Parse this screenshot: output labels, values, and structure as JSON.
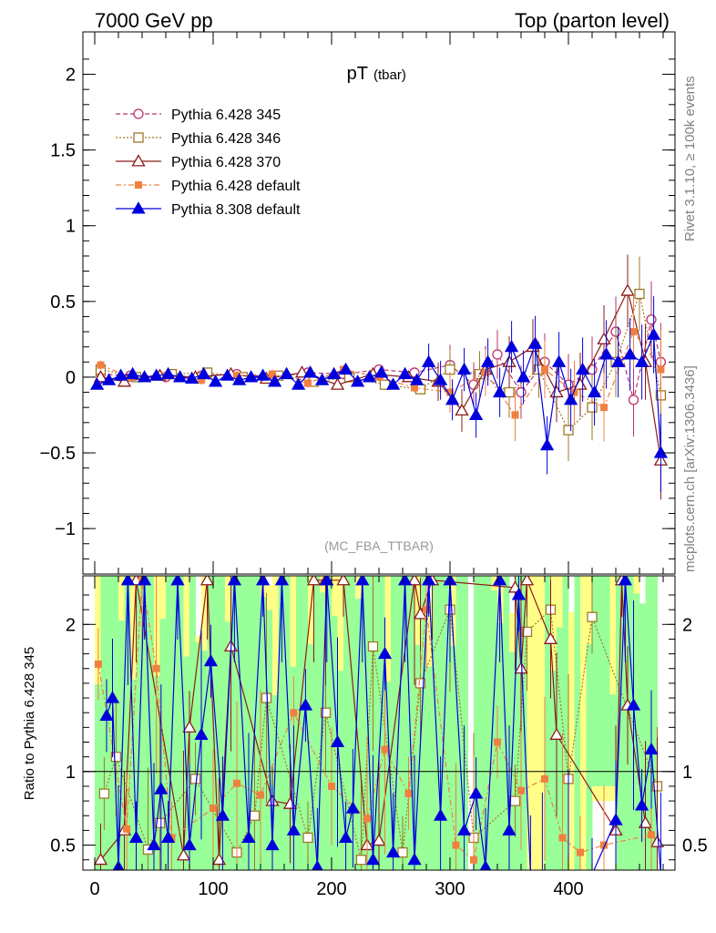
{
  "header": {
    "left": "7000 GeV pp",
    "right": "Top (parton level)"
  },
  "side_labels": {
    "rivet": "Rivet 3.1.10, ≥ 100k events",
    "mcplots": "mcplots.cern.ch [arXiv:1306.3436]"
  },
  "chart_data": [
    {
      "type": "line",
      "panel": "main",
      "title": "pT",
      "title_sub": "(tbar)",
      "watermark": "(MC_FBA_TTBAR)",
      "xlim": [
        -10,
        490
      ],
      "ylim": [
        -1.3,
        2.28
      ],
      "yticks": [
        -1,
        -0.5,
        0,
        0.5,
        1,
        1.5,
        2
      ],
      "ytick_labels": [
        "−1",
        "−0.5",
        "0",
        "0.5",
        "1",
        "1.5",
        "2"
      ],
      "legend_position": "top-left",
      "series": [
        {
          "name": "Pythia 6.428 345",
          "color": "#b8336a",
          "marker": "open-circle",
          "x": [
            5,
            30,
            60,
            90,
            120,
            150,
            180,
            210,
            240,
            270,
            300,
            320,
            340,
            360,
            380,
            400,
            420,
            440,
            455,
            470,
            478
          ],
          "y": [
            0.02,
            0.01,
            0.0,
            0.01,
            0.02,
            0.0,
            0.03,
            0.02,
            0.05,
            0.03,
            0.08,
            -0.05,
            0.15,
            -0.1,
            0.1,
            -0.05,
            0.05,
            0.3,
            -0.15,
            0.38,
            0.1
          ]
        },
        {
          "name": "Pythia 6.428 346",
          "color": "#a07828",
          "marker": "open-square",
          "x": [
            5,
            35,
            65,
            95,
            125,
            155,
            185,
            215,
            245,
            275,
            300,
            325,
            350,
            375,
            400,
            420,
            440,
            460,
            478
          ],
          "y": [
            0.05,
            0.0,
            0.02,
            0.03,
            0.0,
            0.01,
            -0.03,
            0.0,
            -0.05,
            -0.08,
            0.05,
            0.02,
            -0.1,
            0.05,
            -0.35,
            -0.2,
            0.1,
            0.55,
            -0.12
          ]
        },
        {
          "name": "Pythia 6.428 370",
          "color": "#8b1a1a",
          "marker": "open-triangle",
          "x": [
            5,
            25,
            55,
            85,
            115,
            145,
            175,
            205,
            235,
            265,
            290,
            310,
            330,
            350,
            370,
            390,
            410,
            430,
            450,
            465,
            478
          ],
          "y": [
            0.0,
            -0.03,
            0.01,
            0.0,
            0.02,
            -0.01,
            0.03,
            -0.05,
            0.02,
            0.0,
            -0.03,
            -0.22,
            0.05,
            0.1,
            0.2,
            -0.1,
            -0.05,
            0.25,
            0.57,
            0.1,
            -0.55
          ]
        },
        {
          "name": "Pythia 6.428 default",
          "color": "#f08040",
          "marker": "filled-square",
          "x": [
            5,
            30,
            60,
            90,
            120,
            150,
            180,
            210,
            240,
            270,
            300,
            330,
            355,
            380,
            405,
            430,
            455,
            478
          ],
          "y": [
            0.08,
            0.0,
            0.01,
            -0.02,
            0.01,
            0.02,
            -0.04,
            0.05,
            0.0,
            -0.07,
            -0.1,
            0.03,
            -0.25,
            0.05,
            -0.1,
            -0.2,
            0.3,
            0.05
          ]
        },
        {
          "name": "Pythia 8.308 default",
          "color": "#0000dd",
          "marker": "filled-triangle",
          "x": [
            2,
            12,
            22,
            32,
            42,
            52,
            62,
            72,
            82,
            92,
            102,
            112,
            122,
            132,
            142,
            152,
            162,
            172,
            182,
            192,
            202,
            212,
            222,
            232,
            242,
            252,
            262,
            272,
            282,
            292,
            302,
            312,
            322,
            332,
            342,
            352,
            362,
            372,
            382,
            392,
            402,
            412,
            422,
            432,
            442,
            452,
            462,
            472,
            478
          ],
          "y": [
            -0.05,
            -0.02,
            0.01,
            0.02,
            0.0,
            0.01,
            0.02,
            0.0,
            -0.01,
            0.02,
            -0.03,
            0.01,
            -0.02,
            0.0,
            0.01,
            -0.03,
            0.02,
            -0.05,
            0.03,
            -0.02,
            0.02,
            0.05,
            -0.03,
            0.0,
            0.03,
            -0.05,
            0.02,
            -0.02,
            0.1,
            -0.02,
            -0.15,
            0.05,
            -0.25,
            0.1,
            -0.1,
            0.2,
            0.0,
            0.22,
            -0.45,
            0.1,
            -0.15,
            0.05,
            -0.1,
            0.15,
            0.1,
            0.15,
            0.1,
            0.28,
            -0.5
          ]
        }
      ]
    },
    {
      "type": "line",
      "panel": "ratio",
      "ylabel": "Ratio to Pythia 6.428 345",
      "xlim": [
        -10,
        490
      ],
      "ylim": [
        0.33,
        2.33
      ],
      "yticks": [
        0.5,
        1,
        2
      ],
      "ytick_labels": [
        "0.5",
        "1",
        "2"
      ],
      "xticks": [
        0,
        100,
        200,
        300,
        400
      ],
      "xtick_labels": [
        "0",
        "100",
        "200",
        "300",
        "400"
      ],
      "bands": {
        "inner_color": "#99ff99",
        "outer_color": "#ffff88"
      },
      "series": [
        {
          "name": "Pythia 6.428 346",
          "color": "#a07828",
          "marker": "open-square",
          "x": [
            8,
            18,
            45,
            55,
            85,
            120,
            135,
            145,
            180,
            195,
            225,
            235,
            260,
            275,
            300,
            320,
            355,
            365,
            385,
            400,
            420,
            475
          ],
          "y": [
            0.85,
            1.1,
            0.47,
            0.65,
            0.95,
            0.45,
            0.7,
            1.5,
            0.55,
            1.4,
            0.4,
            1.85,
            0.45,
            1.6,
            2.1,
            0.55,
            0.8,
            1.95,
            2.1,
            0.95,
            2.05,
            0.9
          ]
        },
        {
          "name": "Pythia 6.428 370",
          "color": "#8b1a1a",
          "marker": "open-triangle",
          "x": [
            5,
            25,
            35,
            75,
            80,
            95,
            105,
            115,
            150,
            165,
            185,
            195,
            210,
            230,
            240,
            270,
            275,
            285,
            355,
            360,
            365,
            385,
            390,
            440,
            445,
            450,
            465,
            475
          ],
          "y": [
            0.4,
            0.6,
            2.3,
            0.43,
            1.3,
            2.3,
            0.4,
            1.85,
            0.8,
            0.78,
            2.3,
            2.3,
            2.3,
            0.5,
            0.53,
            2.3,
            2.07,
            2.3,
            2.25,
            1.7,
            2.3,
            1.9,
            1.25,
            0.6,
            2.3,
            1.45,
            0.65,
            0.52
          ]
        },
        {
          "name": "Pythia 6.428 default",
          "color": "#f08040",
          "marker": "filled-square",
          "x": [
            3,
            27,
            40,
            52,
            65,
            100,
            120,
            140,
            168,
            200,
            230,
            245,
            265,
            280,
            305,
            320,
            340,
            360,
            380,
            395,
            410,
            430,
            470
          ],
          "y": [
            1.73,
            0.61,
            2.3,
            1.7,
            0.55,
            0.75,
            0.92,
            0.84,
            1.4,
            0.9,
            0.68,
            1.15,
            0.85,
            2.1,
            0.5,
            0.4,
            1.2,
            0.87,
            0.95,
            0.55,
            0.45,
            0.5,
            0.57
          ]
        },
        {
          "name": "Pythia 8.308 default",
          "color": "#0000dd",
          "marker": "filled-triangle",
          "x": [
            10,
            15,
            20,
            28,
            35,
            42,
            50,
            56,
            62,
            70,
            80,
            90,
            98,
            108,
            118,
            130,
            142,
            150,
            158,
            168,
            178,
            188,
            196,
            205,
            212,
            218,
            226,
            235,
            245,
            252,
            262,
            270,
            282,
            292,
            300,
            312,
            322,
            330,
            342,
            350,
            358,
            368,
            378,
            400,
            420,
            440,
            448,
            455,
            462,
            470,
            478
          ],
          "y": [
            1.38,
            1.5,
            0.35,
            2.3,
            0.55,
            2.3,
            0.5,
            0.88,
            0.55,
            2.3,
            0.5,
            1.25,
            1.75,
            0.7,
            2.3,
            0.55,
            2.3,
            0.5,
            2.3,
            0.6,
            1.45,
            0.35,
            2.3,
            1.2,
            0.55,
            0.75,
            2.3,
            0.4,
            1.8,
            0.45,
            2.3,
            0.4,
            2.3,
            0.7,
            2.3,
            0.6,
            0.85,
            0.35,
            2.3,
            0.6,
            2.2,
            0.3,
            0.3,
            0.3,
            0.3,
            0.67,
            2.3,
            1.45,
            0.77,
            1.15,
            0.3
          ]
        }
      ]
    }
  ]
}
